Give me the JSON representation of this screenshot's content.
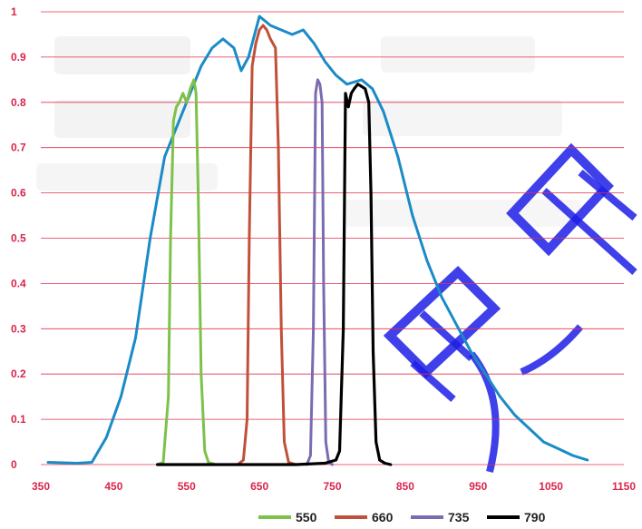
{
  "chart_data": {
    "type": "line",
    "title": "",
    "xlabel": "",
    "ylabel": "",
    "xlim": [
      350,
      1150
    ],
    "ylim": [
      0,
      1
    ],
    "x_ticks": [
      "350",
      "450",
      "550",
      "650",
      "750",
      "850",
      "950",
      "1050",
      "1150"
    ],
    "y_ticks": [
      "0",
      "0.1",
      "0.2",
      "0.3",
      "0.4",
      "0.5",
      "0.6",
      "0.7",
      "0.8",
      "0.9",
      "1"
    ],
    "grid": "horizontal",
    "legend_position": "bottom-right",
    "series": [
      {
        "name": "",
        "color": "#1a8bc7",
        "x": [
          360,
          380,
          400,
          420,
          440,
          460,
          480,
          500,
          520,
          540,
          555,
          570,
          585,
          600,
          615,
          625,
          635,
          650,
          665,
          680,
          695,
          710,
          725,
          740,
          755,
          770,
          790,
          805,
          820,
          840,
          860,
          880,
          900,
          920,
          940,
          960,
          980,
          1000,
          1020,
          1040,
          1060,
          1080,
          1100
        ],
        "values": [
          0.005,
          0.004,
          0.003,
          0.005,
          0.06,
          0.15,
          0.28,
          0.5,
          0.68,
          0.76,
          0.82,
          0.88,
          0.92,
          0.94,
          0.92,
          0.87,
          0.9,
          0.99,
          0.97,
          0.96,
          0.95,
          0.96,
          0.93,
          0.89,
          0.86,
          0.84,
          0.85,
          0.83,
          0.78,
          0.68,
          0.55,
          0.45,
          0.37,
          0.31,
          0.25,
          0.2,
          0.15,
          0.11,
          0.08,
          0.05,
          0.035,
          0.02,
          0.01
        ]
      },
      {
        "name": "550",
        "color": "#7dc14b",
        "x": [
          510,
          518,
          525,
          528,
          532,
          536,
          540,
          545,
          550,
          555,
          560,
          563,
          566,
          570,
          575,
          580,
          590
        ],
        "values": [
          0,
          0.005,
          0.15,
          0.5,
          0.76,
          0.79,
          0.8,
          0.82,
          0.8,
          0.83,
          0.85,
          0.82,
          0.6,
          0.2,
          0.03,
          0.005,
          0
        ]
      },
      {
        "name": "660",
        "color": "#c0503a",
        "x": [
          620,
          628,
          633,
          636,
          640,
          645,
          650,
          655,
          660,
          665,
          672,
          676,
          680,
          684,
          690,
          700
        ],
        "values": [
          0,
          0.01,
          0.1,
          0.5,
          0.88,
          0.93,
          0.96,
          0.97,
          0.96,
          0.94,
          0.92,
          0.7,
          0.3,
          0.05,
          0.005,
          0
        ]
      },
      {
        "name": "735",
        "color": "#7b6bb0",
        "x": [
          715,
          720,
          724,
          727,
          730,
          733,
          736,
          738,
          741,
          745,
          750
        ],
        "values": [
          0,
          0.02,
          0.3,
          0.82,
          0.85,
          0.84,
          0.8,
          0.4,
          0.05,
          0.005,
          0
        ]
      },
      {
        "name": "790",
        "color": "#000000",
        "x": [
          510,
          700,
          740,
          755,
          760,
          765,
          768,
          772,
          776,
          780,
          785,
          790,
          795,
          800,
          803,
          806,
          810,
          815,
          822,
          830
        ],
        "values": [
          0,
          0,
          0.003,
          0.01,
          0.03,
          0.3,
          0.82,
          0.79,
          0.82,
          0.83,
          0.84,
          0.835,
          0.83,
          0.8,
          0.6,
          0.25,
          0.05,
          0.01,
          0.003,
          0
        ]
      }
    ]
  }
}
